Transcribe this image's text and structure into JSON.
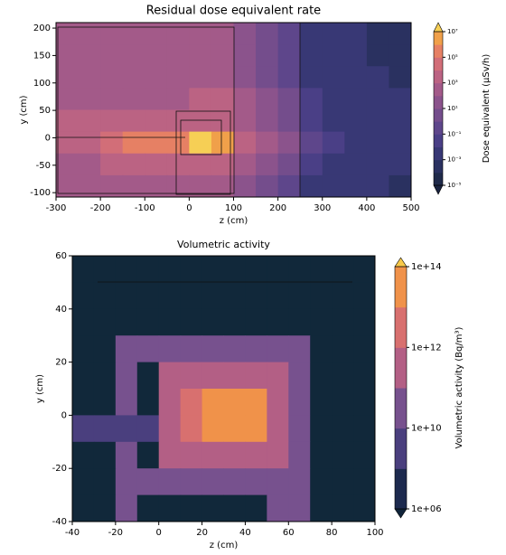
{
  "chart_data": [
    {
      "type": "heatmap",
      "title": "Residual dose equivalent rate",
      "xlabel": "z (cm)",
      "ylabel": "y (cm)",
      "xlim": [
        -300,
        500
      ],
      "ylim": [
        -108,
        210
      ],
      "xticks": [
        -300,
        -200,
        -100,
        0,
        100,
        200,
        300,
        400,
        500
      ],
      "yticks": [
        -100,
        -50,
        0,
        50,
        100,
        150,
        200
      ],
      "z": [
        [
          100,
          100,
          100,
          100,
          100,
          100,
          100,
          100,
          10,
          1,
          0.1,
          0.001,
          0.001,
          0.001,
          0.0001,
          0.0001
        ],
        [
          100,
          100,
          100,
          100,
          100,
          100,
          100,
          100,
          10,
          1,
          0.1,
          0.001,
          0.001,
          0.001,
          0.0001,
          0.0001
        ],
        [
          100,
          100,
          100,
          100,
          100,
          100,
          100,
          100,
          10,
          1,
          0.1,
          0.001,
          0.001,
          0.001,
          0.001,
          0.0001
        ],
        [
          100,
          100,
          100,
          100,
          100,
          100,
          1000,
          1000,
          100,
          10,
          1,
          0.01,
          0.001,
          0.001,
          0.001,
          0.001
        ],
        [
          1000,
          1000,
          1000,
          1000,
          1000,
          1000,
          1000,
          1000,
          100,
          10,
          1,
          0.01,
          0.001,
          0.001,
          0.001,
          0.001
        ],
        [
          1000,
          1000,
          10000,
          100000,
          100000,
          100000,
          10000000,
          1000000,
          1000,
          100,
          10,
          0.1,
          0.01,
          0.001,
          0.001,
          0.001
        ],
        [
          100,
          100,
          1000,
          1000,
          1000,
          1000,
          1000,
          1000,
          100,
          10,
          1,
          0.01,
          0.001,
          0.001,
          0.001,
          0.001
        ],
        [
          100,
          100,
          100,
          100,
          100,
          100,
          100,
          100,
          10,
          1,
          0.1,
          0.001,
          0.001,
          0.001,
          0.001,
          0.0001
        ]
      ],
      "colorbar": {
        "label": "Dose equivalent (μSv/h)",
        "levels": [
          1e-05,
          0.0001,
          0.001,
          0.01,
          0.1,
          1,
          10,
          100,
          1000,
          10000,
          100000,
          1000000,
          10000000
        ],
        "colors": [
          "#1f2a4a",
          "#2a3160",
          "#383875",
          "#4a3f86",
          "#5e468b",
          "#744d8c",
          "#8b538c",
          "#a35a89",
          "#bb6383",
          "#d26e78",
          "#e68064",
          "#f0a04a"
        ],
        "under": "#1a2440",
        "over": "#f6cf55",
        "ticks": [
          {
            "value": 1e-05,
            "label": "10⁻⁵"
          },
          {
            "value": 0.001,
            "label": "10⁻³"
          },
          {
            "value": 0.1,
            "label": "10⁻¹"
          },
          {
            "value": 10,
            "label": "10¹"
          },
          {
            "value": 1000,
            "label": "10³"
          },
          {
            "value": 100000,
            "label": "10⁵"
          },
          {
            "value": 10000000,
            "label": "10⁷"
          }
        ]
      }
    },
    {
      "type": "heatmap",
      "title": "Volumetric activity",
      "xlabel": "z (cm)",
      "ylabel": "y (cm)",
      "xlim": [
        -40,
        100
      ],
      "ylim": [
        -40,
        60
      ],
      "xticks": [
        -40,
        -20,
        0,
        20,
        40,
        60,
        80,
        100
      ],
      "yticks": [
        -40,
        -20,
        0,
        20,
        40,
        60
      ],
      "nan_color": "#11283a",
      "z": [
        [
          null,
          null,
          null,
          null,
          null,
          null,
          null,
          null,
          null,
          null,
          null,
          null,
          null,
          null
        ],
        [
          null,
          null,
          null,
          null,
          null,
          null,
          null,
          null,
          null,
          null,
          null,
          null,
          null,
          null
        ],
        [
          null,
          null,
          null,
          null,
          null,
          null,
          null,
          null,
          null,
          null,
          null,
          null,
          null,
          null
        ],
        [
          null,
          null,
          30000000000,
          30000000000,
          30000000000,
          30000000000,
          30000000000,
          30000000000,
          30000000000,
          30000000000,
          30000000000,
          null,
          null,
          null
        ],
        [
          null,
          null,
          30000000000,
          null,
          300000000000,
          300000000000,
          300000000000,
          300000000000,
          300000000000,
          300000000000,
          30000000000,
          null,
          null,
          null
        ],
        [
          null,
          null,
          30000000000,
          null,
          300000000000,
          3000000000000,
          30000000000000,
          30000000000000,
          30000000000000,
          300000000000,
          30000000000,
          null,
          null,
          null
        ],
        [
          1000000000,
          1000000000,
          1000000000,
          1000000000,
          300000000000,
          3000000000000,
          30000000000000,
          30000000000000,
          30000000000000,
          300000000000,
          30000000000,
          null,
          null,
          null
        ],
        [
          null,
          null,
          30000000000,
          null,
          300000000000,
          300000000000,
          300000000000,
          300000000000,
          300000000000,
          300000000000,
          30000000000,
          null,
          null,
          null
        ],
        [
          null,
          null,
          30000000000,
          30000000000,
          30000000000,
          30000000000,
          30000000000,
          30000000000,
          30000000000,
          30000000000,
          30000000000,
          null,
          null,
          null
        ],
        [
          null,
          null,
          30000000000,
          null,
          null,
          null,
          null,
          null,
          null,
          30000000000,
          30000000000,
          null,
          null,
          null
        ]
      ],
      "colorbar": {
        "label": "Volumetric activity (Bq/m³)",
        "levels": [
          1000000,
          100000000,
          10000000000,
          100000000000,
          1000000000000,
          10000000000000,
          100000000000000
        ],
        "colors": [
          "#1d2a4e",
          "#4a3f7e",
          "#77518e",
          "#b35f85",
          "#d8706f",
          "#f0924a"
        ],
        "under": "#10243a",
        "over": "#f7c94a",
        "ticks": [
          {
            "value": 1000000,
            "label": "1e+06"
          },
          {
            "value": 10000000000,
            "label": "1e+10"
          },
          {
            "value": 1000000000000,
            "label": "1e+12"
          },
          {
            "value": 100000000000000,
            "label": "1e+14"
          }
        ]
      }
    }
  ]
}
